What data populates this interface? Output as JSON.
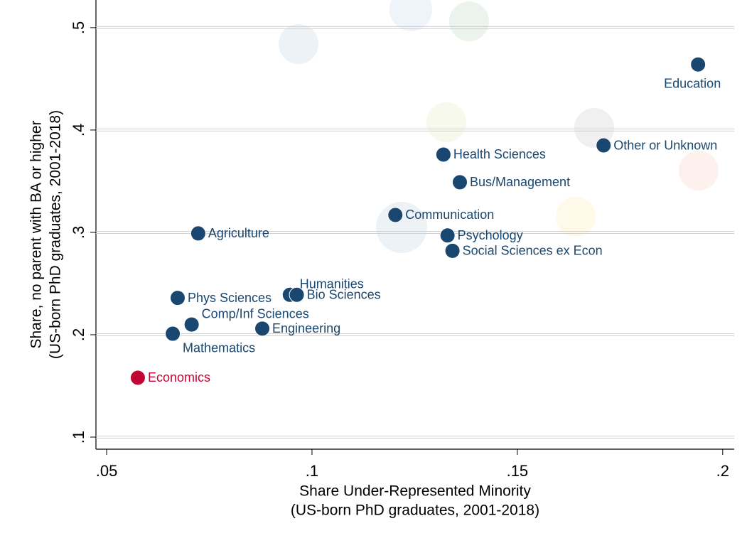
{
  "chart_data": {
    "type": "scatter",
    "x_label": [
      "Share Under-Represented Minority",
      "(US-born PhD graduates, 2001-2018)"
    ],
    "y_label": [
      "Share, no parent with BA or higher",
      "(US-born PhD graduates, 2001-2018)"
    ],
    "labels": [
      "Education",
      "Other or Unknown",
      "Health Sciences",
      "Bus/Management",
      "Communication",
      "Psychology",
      "Social Sciences ex Econ",
      "Agriculture",
      "Humanities",
      "Bio Sciences",
      "Phys Sciences",
      "Comp/Inf Sciences",
      "Engineering",
      "Mathematics",
      "Economics"
    ],
    "x": [
      0.194,
      0.171,
      0.132,
      0.136,
      0.1203,
      0.133,
      0.1342,
      0.0723,
      0.0946,
      0.0963,
      0.0673,
      0.0707,
      0.0879,
      0.0661,
      0.0576
    ],
    "values": [
      0.464,
      0.385,
      0.376,
      0.349,
      0.317,
      0.297,
      0.282,
      0.299,
      0.239,
      0.239,
      0.236,
      0.21,
      0.206,
      0.201,
      0.158
    ],
    "colors": [
      "#1a476f",
      "#1a476f",
      "#1a476f",
      "#1a476f",
      "#1a476f",
      "#1a476f",
      "#1a476f",
      "#1a476f",
      "#1a476f",
      "#1a476f",
      "#1a476f",
      "#1a476f",
      "#1a476f",
      "#1a476f",
      "#c10534"
    ],
    "xlim": [
      0.0474,
      0.2028
    ],
    "ylim": [
      0.0882,
      0.527
    ],
    "xticks": [
      {
        "value": 0.05,
        "label": ".05"
      },
      {
        "value": 0.1,
        "label": ".1"
      },
      {
        "value": 0.15,
        "label": ".15"
      },
      {
        "value": 0.2,
        "label": ".2"
      }
    ],
    "yticks": [
      {
        "value": 0.1,
        "label": ".1"
      },
      {
        "value": 0.2,
        "label": ".2"
      },
      {
        "value": 0.3,
        "label": ".3"
      },
      {
        "value": 0.4,
        "label": ".4"
      },
      {
        "value": 0.5,
        "label": ".5"
      }
    ],
    "grid": true
  }
}
